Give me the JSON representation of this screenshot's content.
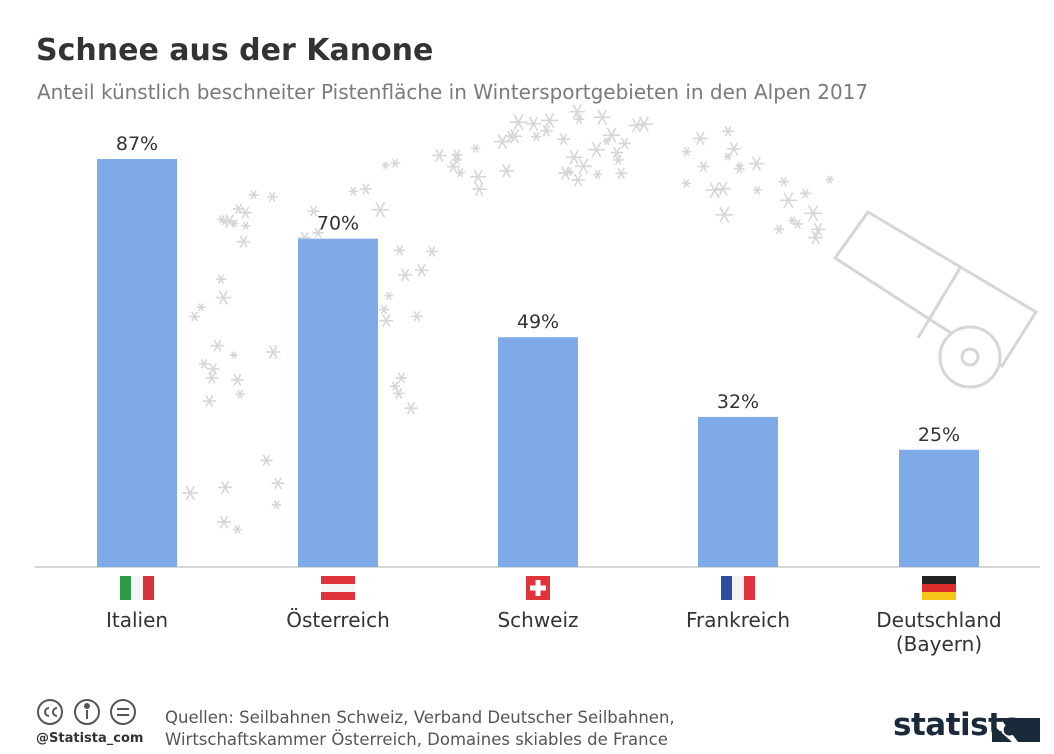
{
  "chart_data": {
    "type": "bar",
    "title": "Schnee aus der Kanone",
    "subtitle": "Anteil künstlich beschneiter Pistenfläche in Wintersportgebieten in den Alpen 2017",
    "categories": [
      "Italien",
      "Österreich",
      "Schweiz",
      "Frankreich",
      "Deutschland (Bayern)"
    ],
    "values": [
      87,
      70,
      49,
      32,
      25
    ],
    "value_labels": [
      "87%",
      "70%",
      "49%",
      "32%",
      "25%"
    ],
    "color": "#7eaae8",
    "source": "Quellen: Seilbahnen Schweiz, Verband Deutscher Seilbahnen, Wirtschaftskammer Österreich, Domaines skiables de France",
    "handle": "@Statista_com",
    "brand": "statista"
  }
}
